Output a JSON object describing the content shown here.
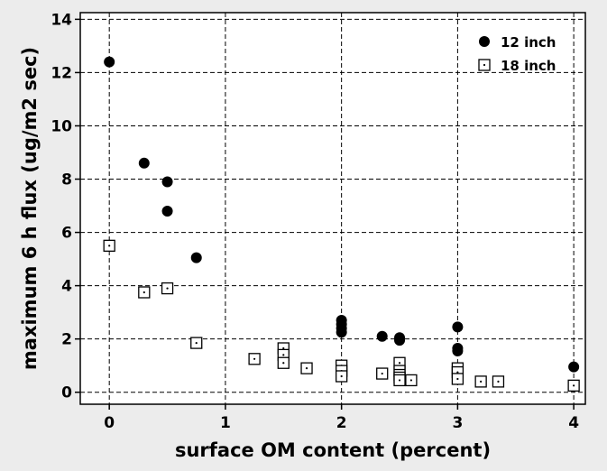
{
  "chart_data": {
    "type": "scatter",
    "title": "",
    "xlabel": "surface OM content (percent)",
    "ylabel": "maximum 6 h flux (ug/m2 sec)",
    "xlim": [
      -0.25,
      4.1
    ],
    "ylim": [
      -0.45,
      14.25
    ],
    "xticks": [
      0,
      1,
      2,
      3,
      4
    ],
    "yticks": [
      0,
      2,
      4,
      6,
      8,
      10,
      12,
      14
    ],
    "grid": true,
    "legend_position": "top-right",
    "series": [
      {
        "name": "12 inch",
        "marker": "filled-circle",
        "color": "#000000",
        "points": [
          [
            0,
            12.4
          ],
          [
            0.3,
            8.6
          ],
          [
            0.5,
            7.9
          ],
          [
            0.5,
            6.8
          ],
          [
            0.75,
            5.05
          ],
          [
            2,
            2.7
          ],
          [
            2,
            2.55
          ],
          [
            2,
            2.4
          ],
          [
            2,
            2.25
          ],
          [
            2.35,
            2.1
          ],
          [
            2.5,
            2.05
          ],
          [
            2.5,
            1.95
          ],
          [
            3,
            2.45
          ],
          [
            3,
            1.65
          ],
          [
            3,
            1.55
          ],
          [
            4,
            0.95
          ]
        ]
      },
      {
        "name": "18 inch",
        "marker": "open-square",
        "color": "#000000",
        "points": [
          [
            0,
            5.5
          ],
          [
            0.3,
            3.75
          ],
          [
            0.5,
            3.9
          ],
          [
            0.75,
            1.85
          ],
          [
            1.25,
            1.25
          ],
          [
            1.5,
            1.65
          ],
          [
            1.5,
            1.4
          ],
          [
            1.5,
            1.1
          ],
          [
            1.7,
            0.9
          ],
          [
            2,
            1.0
          ],
          [
            2,
            0.8
          ],
          [
            2,
            0.6
          ],
          [
            2.35,
            0.7
          ],
          [
            2.5,
            1.1
          ],
          [
            2.5,
            0.8
          ],
          [
            2.5,
            0.65
          ],
          [
            2.5,
            0.55
          ],
          [
            2.5,
            0.45
          ],
          [
            2.6,
            0.45
          ],
          [
            3,
            0.9
          ],
          [
            3,
            0.75
          ],
          [
            3,
            0.5
          ],
          [
            3.2,
            0.4
          ],
          [
            3.35,
            0.4
          ],
          [
            4,
            0.25
          ]
        ]
      }
    ]
  }
}
